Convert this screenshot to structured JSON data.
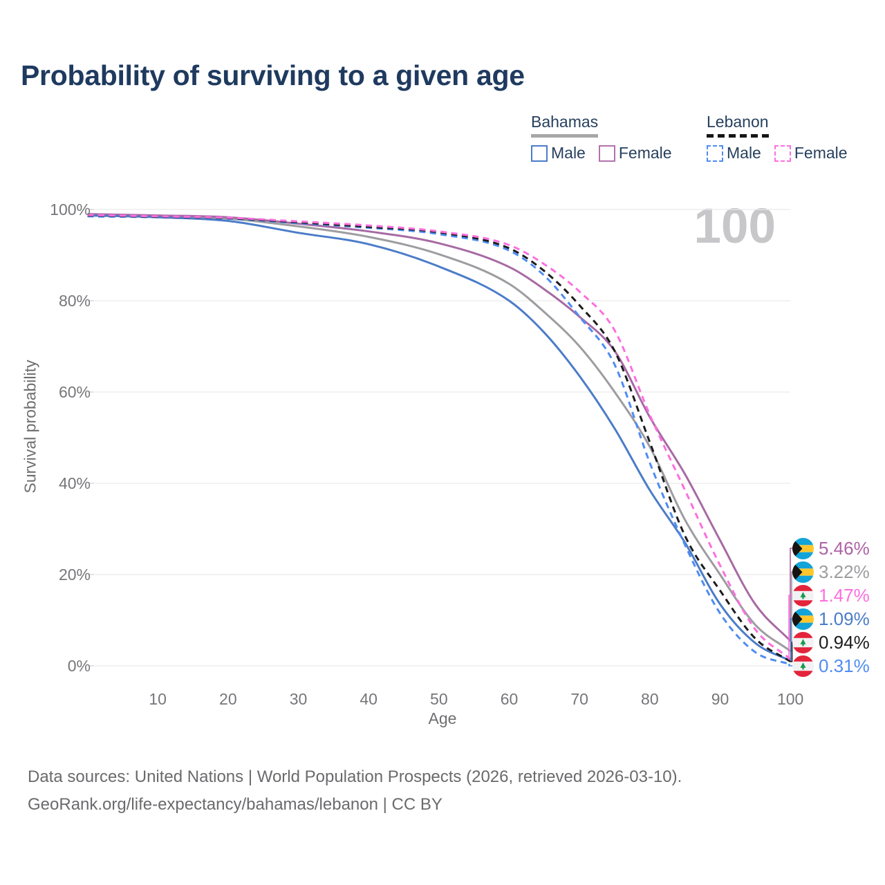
{
  "title": "Probability of surviving to a given age",
  "watermark": "100",
  "legend": {
    "groups": [
      {
        "label": "Bahamas",
        "line_style": "solid",
        "underline_color": "#a7a7aa",
        "items": [
          {
            "label": "Male",
            "color": "#4b7cc8"
          },
          {
            "label": "Female",
            "color": "#b272ae"
          }
        ]
      },
      {
        "label": "Lebanon",
        "line_style": "dashed",
        "underline_color": "#161618",
        "items": [
          {
            "label": "Male",
            "color": "#4f8cf2"
          },
          {
            "label": "Female",
            "color": "#fc6fdf"
          }
        ]
      }
    ]
  },
  "chart_data": {
    "type": "line",
    "title": "Probability of surviving to a given age",
    "xlabel": "Age",
    "ylabel": "Survival probability",
    "xlim": [
      0,
      100
    ],
    "ylim": [
      0,
      100
    ],
    "grid": "horizontal",
    "x_ticks": [
      10,
      20,
      30,
      40,
      50,
      60,
      70,
      80,
      90,
      100
    ],
    "y_ticks": [
      {
        "label": "0%",
        "value": 0
      },
      {
        "label": "20%",
        "value": 20
      },
      {
        "label": "40%",
        "value": 40
      },
      {
        "label": "60%",
        "value": 60
      },
      {
        "label": "80%",
        "value": 80
      },
      {
        "label": "100%",
        "value": 100
      }
    ],
    "x": [
      0,
      10,
      20,
      30,
      40,
      50,
      60,
      65,
      70,
      75,
      80,
      85,
      90,
      95,
      100
    ],
    "series": [
      {
        "id": "bahamas-both",
        "name": "Bahamas Both sexes",
        "country": "Bahamas",
        "sex": "Both",
        "color": "#9d9da1",
        "dash": false,
        "values": [
          98.9,
          98.5,
          98.0,
          96.3,
          94.0,
          90.2,
          83.7,
          77.5,
          70.0,
          60.0,
          48.0,
          32.0,
          20.0,
          9.0,
          3.22
        ]
      },
      {
        "id": "bahamas-female",
        "name": "Bahamas Female",
        "country": "Bahamas",
        "sex": "Female",
        "color": "#a76aa4",
        "dash": false,
        "values": [
          99.0,
          98.7,
          98.3,
          96.9,
          95.2,
          92.6,
          87.4,
          82.5,
          76.5,
          69.0,
          54.5,
          42.0,
          27.5,
          13.5,
          5.46
        ]
      },
      {
        "id": "bahamas-male",
        "name": "Bahamas Male",
        "country": "Bahamas",
        "sex": "Male",
        "color": "#4b7cc8",
        "dash": false,
        "values": [
          98.7,
          98.3,
          97.5,
          94.9,
          92.4,
          87.5,
          80.0,
          73.0,
          63.5,
          52.0,
          38.5,
          27.0,
          13.5,
          5.0,
          1.09
        ]
      },
      {
        "id": "lebanon-male",
        "name": "Lebanon Male",
        "country": "Lebanon",
        "sex": "Male",
        "color": "#4f8cf2",
        "dash": true,
        "values": [
          98.5,
          98.3,
          98.0,
          97.0,
          96.0,
          94.6,
          91.0,
          85.5,
          76.5,
          66.0,
          44.5,
          26.5,
          11.5,
          3.0,
          0.31
        ]
      },
      {
        "id": "lebanon-both",
        "name": "Lebanon Both sexes",
        "country": "Lebanon",
        "sex": "Both",
        "color": "#1c1c1e",
        "dash": true,
        "values": [
          98.7,
          98.4,
          98.1,
          97.2,
          96.2,
          95.0,
          91.5,
          86.5,
          79.0,
          69.0,
          49.0,
          28.5,
          16.5,
          6.0,
          0.94
        ]
      },
      {
        "id": "lebanon-female",
        "name": "Lebanon Female",
        "country": "Lebanon",
        "sex": "Female",
        "color": "#fc6fdf",
        "dash": true,
        "values": [
          98.8,
          98.5,
          98.2,
          97.4,
          96.5,
          95.2,
          92.2,
          88.0,
          82.0,
          73.5,
          55.0,
          38.5,
          22.0,
          8.0,
          1.47
        ]
      }
    ]
  },
  "end_labels": [
    {
      "value": "5.46%",
      "flag": "bahamas",
      "color": "#ae62a5",
      "series_id": "bahamas-female"
    },
    {
      "value": "3.22%",
      "flag": "bahamas",
      "color": "#9d9da1",
      "series_id": "bahamas-both"
    },
    {
      "value": "1.47%",
      "flag": "lebanon",
      "color": "#fc6fdf",
      "series_id": "lebanon-female"
    },
    {
      "value": "1.09%",
      "flag": "bahamas",
      "color": "#4b7cc8",
      "series_id": "bahamas-male"
    },
    {
      "value": "0.94%",
      "flag": "lebanon",
      "color": "#1c1c1e",
      "series_id": "lebanon-both"
    },
    {
      "value": "0.31%",
      "flag": "lebanon",
      "color": "#4f8cf2",
      "series_id": "lebanon-male"
    }
  ],
  "footer": {
    "line1": "Data sources: United Nations | World Population Prospects (2026, retrieved 2026-03-10).",
    "line2": "GeoRank.org/life-expectancy/bahamas/lebanon | CC BY"
  }
}
